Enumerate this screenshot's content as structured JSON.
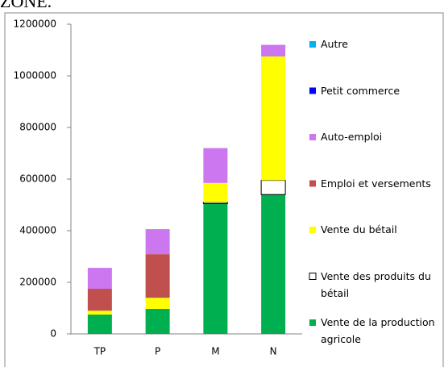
{
  "heading": "ZONE.",
  "chart_data": {
    "type": "stacked_bar",
    "categories": [
      "TP",
      "P",
      "M",
      "N"
    ],
    "series": [
      {
        "name": "Vente de la production agricole",
        "color": "#00b050",
        "values": [
          75000,
          97000,
          505000,
          540000
        ]
      },
      {
        "name": "Vente des produits du bétail",
        "color": "#ffffff",
        "values": [
          0,
          0,
          5000,
          55000
        ]
      },
      {
        "name": "Vente du bétail",
        "color": "#ffff00",
        "values": [
          15000,
          43000,
          75000,
          480000
        ]
      },
      {
        "name": "Emploi et versements",
        "color": "#c0504d",
        "values": [
          85000,
          169000,
          0,
          0
        ]
      },
      {
        "name": "Auto-emploi",
        "color": "#cc77f0",
        "values": [
          81000,
          97000,
          135000,
          45000
        ]
      },
      {
        "name": "Petit commerce",
        "color": "#0000ff",
        "values": [
          0,
          0,
          0,
          0
        ]
      },
      {
        "name": "Autre",
        "color": "#00b0f0",
        "values": [
          0,
          0,
          0,
          0
        ]
      }
    ],
    "ylim": [
      0,
      1200000
    ],
    "yticks": [
      0,
      200000,
      400000,
      600000,
      800000,
      1000000,
      1200000
    ],
    "legend": "right"
  }
}
